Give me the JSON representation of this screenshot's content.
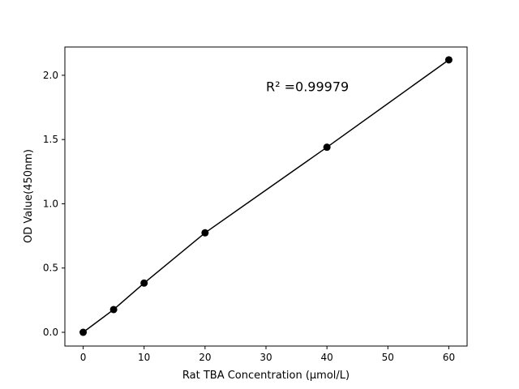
{
  "chart_data": {
    "type": "line",
    "title": "",
    "xlabel": "Rat TBA Concentration (μmol/L)",
    "ylabel": "OD Value(450nm)",
    "x": [
      0,
      5,
      10,
      20,
      40,
      60
    ],
    "series": [
      {
        "values": [
          0.0,
          0.177,
          0.383,
          0.774,
          1.44,
          2.12
        ],
        "color": "#000000",
        "marker": "circle"
      }
    ],
    "xlim": [
      -3,
      63
    ],
    "ylim": [
      -0.107,
      2.22
    ],
    "xticks": [
      0,
      10,
      20,
      30,
      40,
      50,
      60
    ],
    "xtick_labels": [
      "0",
      "10",
      "20",
      "30",
      "40",
      "50",
      "60"
    ],
    "yticks": [
      0.0,
      0.5,
      1.0,
      1.5,
      2.0
    ],
    "ytick_labels": [
      "0.0",
      "0.5",
      "1.0",
      "1.5",
      "2.0"
    ],
    "annotation": {
      "text": "R² =0.99979",
      "x": 30,
      "y": 1.9
    },
    "grid": false,
    "legend": "none"
  }
}
